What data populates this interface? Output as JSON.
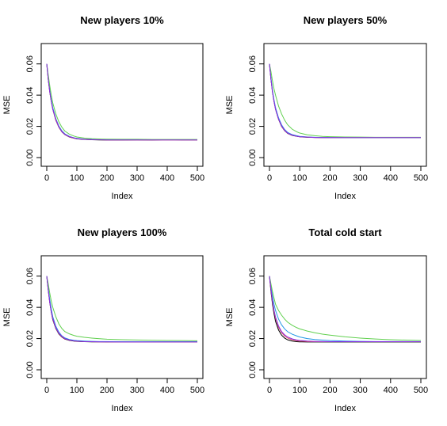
{
  "chart_data": [
    {
      "type": "line",
      "title": "New players 10%",
      "xlabel": "Index",
      "ylabel": "MSE",
      "xlim": [
        0,
        500
      ],
      "ylim": [
        0,
        0.07
      ],
      "xticks": [
        "0",
        "100",
        "200",
        "300",
        "400",
        "500"
      ],
      "yticks": [
        "0.00",
        "0.02",
        "0.04",
        "0.06"
      ],
      "x": [
        0,
        5,
        10,
        15,
        20,
        30,
        40,
        50,
        60,
        75,
        90,
        100,
        125,
        150,
        175,
        200,
        250,
        300,
        350,
        400,
        450,
        500
      ],
      "series": [
        {
          "color": "#000000",
          "values": [
            0.06,
            0.05,
            0.042,
            0.036,
            0.031,
            0.024,
            0.0195,
            0.0165,
            0.0147,
            0.0132,
            0.0124,
            0.012,
            0.0116,
            0.0114,
            0.0113,
            0.0112,
            0.0112,
            0.0113,
            0.0112,
            0.0114,
            0.0113,
            0.0113
          ]
        },
        {
          "color": "#df536b",
          "values": [
            0.06,
            0.05,
            0.042,
            0.036,
            0.031,
            0.024,
            0.0196,
            0.0166,
            0.0148,
            0.0133,
            0.0125,
            0.0121,
            0.0117,
            0.0115,
            0.0114,
            0.0113,
            0.0113,
            0.0113,
            0.0113,
            0.0113,
            0.0113,
            0.0113
          ]
        },
        {
          "color": "#2297e6",
          "values": [
            0.06,
            0.051,
            0.043,
            0.037,
            0.032,
            0.025,
            0.0203,
            0.0172,
            0.0152,
            0.0136,
            0.0127,
            0.0123,
            0.0118,
            0.0116,
            0.0115,
            0.0114,
            0.0114,
            0.0114,
            0.0114,
            0.0114,
            0.0114,
            0.0114
          ]
        },
        {
          "color": "#61d04f",
          "values": [
            0.06,
            0.053,
            0.046,
            0.04,
            0.035,
            0.028,
            0.023,
            0.0195,
            0.017,
            0.015,
            0.0138,
            0.0132,
            0.0125,
            0.0121,
            0.0119,
            0.0118,
            0.0117,
            0.0117,
            0.0116,
            0.0116,
            0.0116,
            0.0116
          ]
        },
        {
          "color": "#8a2be2",
          "values": [
            0.06,
            0.05,
            0.042,
            0.036,
            0.031,
            0.0245,
            0.0198,
            0.0168,
            0.0149,
            0.0134,
            0.0126,
            0.0121,
            0.0117,
            0.0115,
            0.0114,
            0.0113,
            0.0113,
            0.0113,
            0.0113,
            0.0113,
            0.0113,
            0.0113
          ]
        }
      ]
    },
    {
      "type": "line",
      "title": "New players 50%",
      "xlabel": "Index",
      "ylabel": "MSE",
      "xlim": [
        0,
        500
      ],
      "ylim": [
        0,
        0.07
      ],
      "xticks": [
        "0",
        "100",
        "200",
        "300",
        "400",
        "500"
      ],
      "yticks": [
        "0.00",
        "0.02",
        "0.04",
        "0.06"
      ],
      "x": [
        0,
        5,
        10,
        15,
        20,
        30,
        40,
        50,
        60,
        75,
        90,
        100,
        125,
        150,
        175,
        200,
        250,
        300,
        350,
        400,
        450,
        500
      ],
      "series": [
        {
          "color": "#000000",
          "values": [
            0.06,
            0.05,
            0.042,
            0.036,
            0.031,
            0.0245,
            0.02,
            0.0172,
            0.0155,
            0.0142,
            0.0136,
            0.0133,
            0.013,
            0.0129,
            0.0128,
            0.0128,
            0.0128,
            0.0128,
            0.0128,
            0.0128,
            0.0128,
            0.0128
          ]
        },
        {
          "color": "#df536b",
          "values": [
            0.06,
            0.05,
            0.042,
            0.036,
            0.031,
            0.0246,
            0.0201,
            0.0173,
            0.0156,
            0.0143,
            0.0137,
            0.0134,
            0.0131,
            0.0129,
            0.0128,
            0.0128,
            0.0128,
            0.0128,
            0.0128,
            0.0128,
            0.0128,
            0.0128
          ]
        },
        {
          "color": "#2297e6",
          "values": [
            0.06,
            0.051,
            0.043,
            0.037,
            0.032,
            0.0255,
            0.021,
            0.018,
            0.0161,
            0.0147,
            0.014,
            0.0136,
            0.0132,
            0.013,
            0.0129,
            0.0129,
            0.0128,
            0.0128,
            0.0128,
            0.0128,
            0.0128,
            0.0128
          ]
        },
        {
          "color": "#61d04f",
          "values": [
            0.06,
            0.055,
            0.049,
            0.044,
            0.04,
            0.033,
            0.028,
            0.024,
            0.021,
            0.0182,
            0.0165,
            0.0157,
            0.0146,
            0.014,
            0.0136,
            0.0134,
            0.0132,
            0.0131,
            0.013,
            0.013,
            0.013,
            0.013
          ]
        },
        {
          "color": "#8a2be2",
          "values": [
            0.06,
            0.05,
            0.042,
            0.036,
            0.031,
            0.0247,
            0.0203,
            0.0175,
            0.0157,
            0.0144,
            0.0137,
            0.0134,
            0.0131,
            0.0129,
            0.0128,
            0.0128,
            0.0128,
            0.0128,
            0.0128,
            0.0128,
            0.0128,
            0.0128
          ]
        }
      ]
    },
    {
      "type": "line",
      "title": "New players 100%",
      "xlabel": "Index",
      "ylabel": "MSE",
      "xlim": [
        0,
        500
      ],
      "ylim": [
        0,
        0.07
      ],
      "xticks": [
        "0",
        "100",
        "200",
        "300",
        "400",
        "500"
      ],
      "yticks": [
        "0.00",
        "0.02",
        "0.04",
        "0.06"
      ],
      "x": [
        0,
        5,
        10,
        15,
        20,
        30,
        40,
        50,
        60,
        75,
        90,
        100,
        125,
        150,
        175,
        200,
        250,
        300,
        350,
        400,
        450,
        500
      ],
      "series": [
        {
          "color": "#000000",
          "values": [
            0.06,
            0.051,
            0.043,
            0.037,
            0.032,
            0.0265,
            0.023,
            0.021,
            0.0197,
            0.0188,
            0.0184,
            0.0182,
            0.018,
            0.0179,
            0.0179,
            0.0178,
            0.0178,
            0.0178,
            0.0178,
            0.0178,
            0.0178,
            0.0178
          ]
        },
        {
          "color": "#df536b",
          "values": [
            0.06,
            0.051,
            0.043,
            0.037,
            0.0325,
            0.0268,
            0.0233,
            0.0212,
            0.0199,
            0.019,
            0.0185,
            0.0183,
            0.0181,
            0.018,
            0.0179,
            0.0179,
            0.0178,
            0.0178,
            0.0178,
            0.0178,
            0.0178,
            0.0178
          ]
        },
        {
          "color": "#2297e6",
          "values": [
            0.06,
            0.052,
            0.045,
            0.039,
            0.034,
            0.028,
            0.0242,
            0.0218,
            0.0204,
            0.0194,
            0.0189,
            0.0187,
            0.0184,
            0.0182,
            0.0181,
            0.0181,
            0.018,
            0.018,
            0.018,
            0.018,
            0.018,
            0.018
          ]
        },
        {
          "color": "#61d04f",
          "values": [
            0.06,
            0.055,
            0.049,
            0.044,
            0.04,
            0.034,
            0.0295,
            0.0265,
            0.0245,
            0.023,
            0.022,
            0.0215,
            0.0208,
            0.0203,
            0.0199,
            0.0196,
            0.0193,
            0.0191,
            0.0189,
            0.0188,
            0.0187,
            0.0186
          ]
        },
        {
          "color": "#8a2be2",
          "values": [
            0.06,
            0.051,
            0.043,
            0.0372,
            0.0328,
            0.027,
            0.0235,
            0.0214,
            0.02,
            0.0191,
            0.0186,
            0.0184,
            0.0181,
            0.018,
            0.0179,
            0.0179,
            0.0178,
            0.0178,
            0.0178,
            0.0178,
            0.0178,
            0.0178
          ]
        }
      ]
    },
    {
      "type": "line",
      "title": "Total cold start",
      "xlabel": "Index",
      "ylabel": "MSE",
      "xlim": [
        0,
        500
      ],
      "ylim": [
        0,
        0.07
      ],
      "xticks": [
        "0",
        "100",
        "200",
        "300",
        "400",
        "500"
      ],
      "yticks": [
        "0.00",
        "0.02",
        "0.04",
        "0.06"
      ],
      "x": [
        0,
        5,
        10,
        15,
        20,
        30,
        40,
        50,
        60,
        75,
        90,
        100,
        125,
        150,
        175,
        200,
        250,
        300,
        350,
        400,
        450,
        500
      ],
      "series": [
        {
          "color": "#000000",
          "values": [
            0.06,
            0.05,
            0.042,
            0.036,
            0.031,
            0.0255,
            0.0222,
            0.0203,
            0.0192,
            0.0184,
            0.018,
            0.0179,
            0.0178,
            0.0178,
            0.0178,
            0.0178,
            0.0178,
            0.0178,
            0.0178,
            0.0178,
            0.0178,
            0.0178
          ]
        },
        {
          "color": "#df536b",
          "values": [
            0.06,
            0.051,
            0.0435,
            0.0375,
            0.033,
            0.0272,
            0.0238,
            0.0217,
            0.0203,
            0.0192,
            0.0186,
            0.0184,
            0.0181,
            0.018,
            0.018,
            0.018,
            0.018,
            0.018,
            0.018,
            0.018,
            0.018,
            0.018
          ]
        },
        {
          "color": "#2297e6",
          "values": [
            0.06,
            0.053,
            0.047,
            0.042,
            0.038,
            0.0325,
            0.0288,
            0.0262,
            0.0244,
            0.0228,
            0.0217,
            0.021,
            0.02,
            0.0194,
            0.019,
            0.0187,
            0.0184,
            0.0182,
            0.0181,
            0.0181,
            0.0181,
            0.0181
          ]
        },
        {
          "color": "#61d04f",
          "values": [
            0.06,
            0.055,
            0.05,
            0.046,
            0.042,
            0.038,
            0.035,
            0.0325,
            0.0305,
            0.0285,
            0.027,
            0.0262,
            0.0248,
            0.0237,
            0.0228,
            0.0222,
            0.0211,
            0.0203,
            0.0197,
            0.0193,
            0.019,
            0.0188
          ]
        },
        {
          "color": "#8a2be2",
          "values": [
            0.06,
            0.0515,
            0.044,
            0.0382,
            0.0338,
            0.028,
            0.0245,
            0.0224,
            0.021,
            0.0198,
            0.0191,
            0.0188,
            0.0184,
            0.0182,
            0.0181,
            0.018,
            0.018,
            0.018,
            0.018,
            0.018,
            0.018,
            0.018
          ]
        }
      ]
    }
  ]
}
